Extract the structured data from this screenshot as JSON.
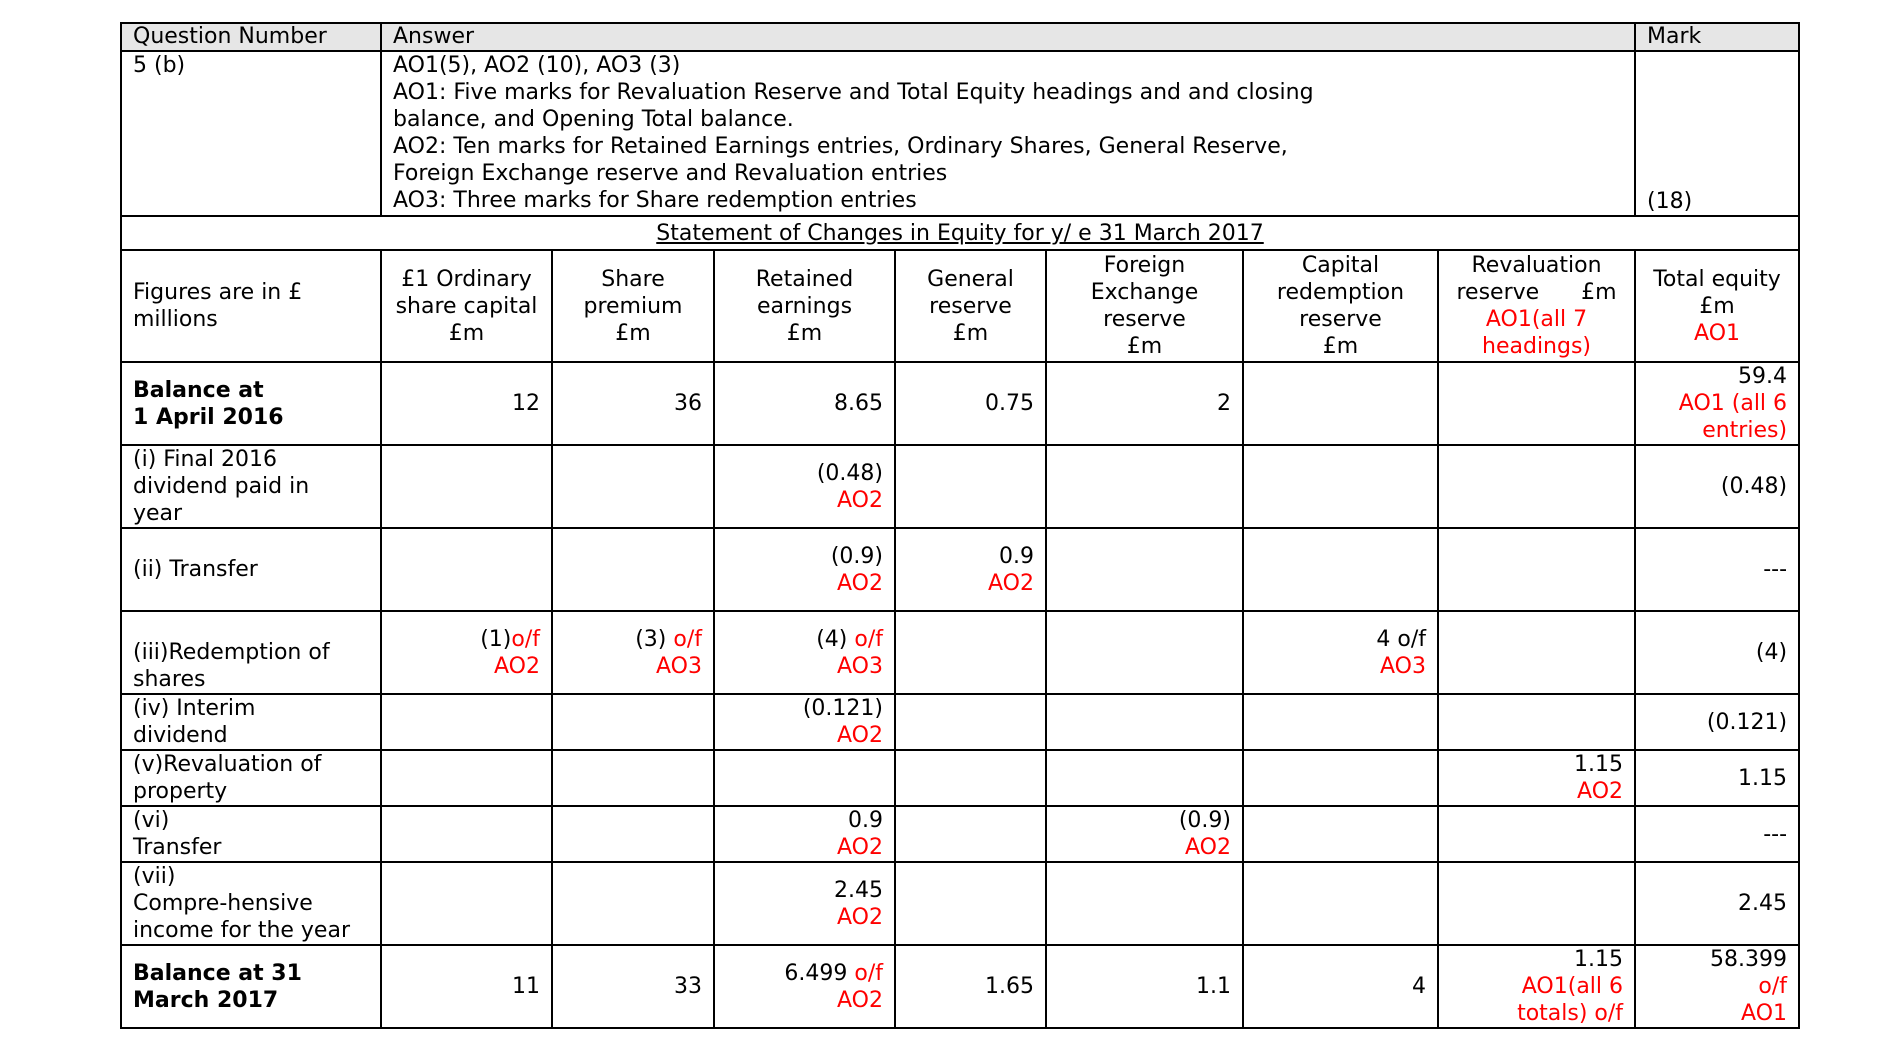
{
  "header": {
    "question_number_label": "Question Number",
    "answer_label": "Answer",
    "mark_label": "Mark"
  },
  "question": {
    "number": "5 (b)",
    "answer_lines": [
      "AO1(5),  AO2 (10), AO3 (3)",
      "AO1: Five marks for Revaluation Reserve and Total Equity headings and and closing",
      "balance, and Opening Total balance.",
      "AO2: Ten marks for Retained Earnings entries, Ordinary Shares, General Reserve,",
      "Foreign Exchange reserve and Revaluation entries",
      "AO3: Three marks for Share redemption entries"
    ],
    "mark": "(18)"
  },
  "statement_title": "Statement of Changes in Equity for y/ e 31 March 2017",
  "columns": {
    "figures": [
      "Figures are in £",
      "millions"
    ],
    "ordinary": [
      "£1 Ordinary",
      "share capital",
      "£m"
    ],
    "premium": [
      "Share",
      "premium",
      "£m"
    ],
    "retained": [
      "Retained",
      "earnings",
      "£m"
    ],
    "general": [
      "General",
      "reserve",
      "£m"
    ],
    "foreign": [
      "Foreign",
      "Exchange",
      "reserve",
      "£m"
    ],
    "capital": [
      "Capital",
      "redemption",
      "reserve",
      "£m"
    ],
    "revaluation": [
      "Revaluation",
      "reserve      £m"
    ],
    "revaluation_note": [
      "AO1(all 7",
      "headings)"
    ],
    "total": [
      "Total equity",
      "£m"
    ],
    "total_note": "AO1"
  },
  "rows": {
    "opening": {
      "label": [
        "Balance at",
        "1 April 2016"
      ],
      "ordinary": "12",
      "premium": "36",
      "retained": "8.65",
      "general": "0.75",
      "foreign": "2",
      "total": "59.4",
      "total_note": [
        "AO1 (all 6",
        "entries)"
      ]
    },
    "r1": {
      "label": [
        "(i) Final 2016",
        "dividend  paid in",
        "year"
      ],
      "retained": "(0.48)",
      "retained_note": "AO2",
      "total": "(0.48)"
    },
    "r2": {
      "label": [
        "(ii) Transfer"
      ],
      "retained": "(0.9)",
      "retained_note": "AO2",
      "general": "0.9",
      "general_note": "AO2",
      "total": "---"
    },
    "r3": {
      "label": [
        "(iii)Redemption of",
        "shares"
      ],
      "ordinary": "(1)",
      "ordinary_of": "o/f",
      "ordinary_note": "AO2",
      "premium": "(3) ",
      "premium_of": "o/f",
      "premium_note": "AO3",
      "retained": "(4) ",
      "retained_of": "o/f",
      "retained_note": "AO3",
      "capital": "4 o/f",
      "capital_note": "AO3",
      "total": "(4)"
    },
    "r4": {
      "label": [
        "(iv) Interim",
        "dividend"
      ],
      "retained": "(0.121)",
      "retained_note": "AO2",
      "total": "(0.121)"
    },
    "r5": {
      "label": [
        "(v)Revaluation of",
        "property"
      ],
      "revaluation": "1.15",
      "revaluation_note": "AO2",
      "total": "1.15"
    },
    "r6": {
      "label": [
        "(vi)",
        "Transfer"
      ],
      "retained": "0.9",
      "retained_note": "AO2",
      "foreign": "(0.9)",
      "foreign_note": "AO2",
      "total": "---"
    },
    "r7": {
      "label": [
        "(vii)",
        "Compre-hensive",
        "income for the year"
      ],
      "retained": "2.45",
      "retained_note": "AO2",
      "total": "2.45"
    },
    "closing": {
      "label": [
        "Balance at 31",
        "March 2017"
      ],
      "ordinary": "11",
      "premium": "33",
      "retained": "6.499 ",
      "retained_of": "o/f",
      "retained_note": "AO2",
      "general": "1.65",
      "foreign": "1.1",
      "capital": "4",
      "revaluation": "1.15",
      "revaluation_note": [
        "AO1(all 6",
        "totals) o/f"
      ],
      "total": "58.399",
      "total_note": [
        "o/f",
        "AO1"
      ]
    }
  },
  "colors": {
    "marks": "#ff0000",
    "header_bg": "#e6e6e6",
    "border": "#000000"
  }
}
